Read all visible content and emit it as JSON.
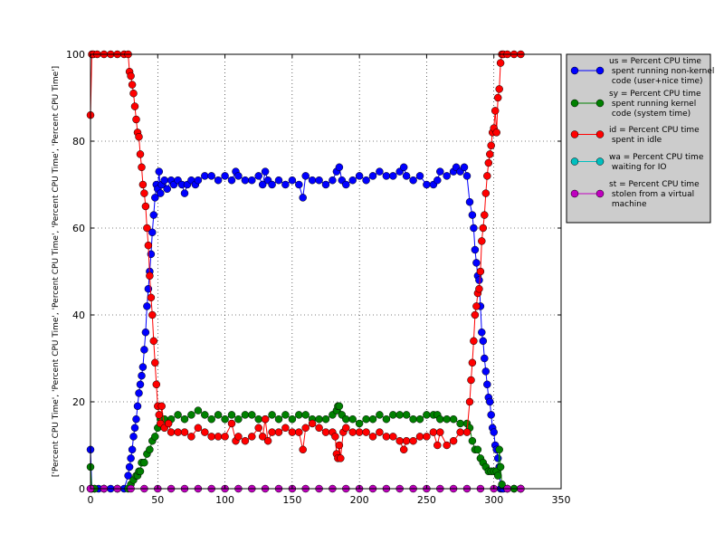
{
  "chart_data": {
    "type": "line",
    "title": "",
    "xlabel": "",
    "ylabel": "['Percent CPU Time', 'Percent CPU Time', 'Percent CPU Time', 'Percent CPU Time', 'Percent CPU Time']",
    "xlim": [
      0,
      350
    ],
    "ylim": [
      0,
      100
    ],
    "xticks": [
      0,
      50,
      100,
      150,
      200,
      250,
      300,
      350
    ],
    "yticks": [
      0,
      20,
      40,
      60,
      80,
      100
    ],
    "grid": true,
    "legend_position": "outside-right-top",
    "series": [
      {
        "name": "us = Percent CPU time spent running non-kernel code (user+nice time)",
        "legend_lines": [
          "us = Percent CPU time",
          " spent running non-kernel",
          " code (user+nice time)"
        ],
        "color": "#0000ff",
        "x": [
          0,
          1,
          3,
          6,
          10,
          15,
          20,
          25,
          28,
          29,
          30,
          31,
          32,
          33,
          34,
          35,
          36,
          37,
          38,
          39,
          40,
          41,
          42,
          43,
          44,
          45,
          46,
          47,
          48,
          49,
          50,
          51,
          52,
          53,
          55,
          57,
          60,
          62,
          65,
          68,
          70,
          72,
          75,
          78,
          80,
          85,
          90,
          95,
          100,
          105,
          108,
          110,
          115,
          120,
          125,
          128,
          130,
          132,
          135,
          140,
          145,
          150,
          155,
          158,
          160,
          165,
          170,
          175,
          180,
          183,
          185,
          187,
          190,
          195,
          200,
          205,
          210,
          215,
          220,
          225,
          230,
          233,
          235,
          240,
          245,
          250,
          255,
          258,
          260,
          265,
          270,
          272,
          275,
          278,
          280,
          282,
          284,
          285,
          286,
          287,
          288,
          289,
          290,
          291,
          292,
          293,
          294,
          295,
          296,
          297,
          298,
          299,
          300,
          301,
          302,
          303,
          304,
          305,
          306,
          307,
          310,
          315,
          320
        ],
        "y": [
          9,
          0,
          0,
          0,
          0,
          0,
          0,
          0,
          3,
          5,
          7,
          9,
          12,
          14,
          16,
          19,
          22,
          24,
          26,
          28,
          32,
          36,
          42,
          46,
          50,
          54,
          59,
          63,
          67,
          70,
          69,
          73,
          68,
          70,
          71,
          69,
          71,
          70,
          71,
          70,
          68,
          70,
          71,
          70,
          71,
          72,
          72,
          71,
          72,
          71,
          73,
          72,
          71,
          71,
          72,
          70,
          73,
          71,
          70,
          71,
          70,
          71,
          70,
          67,
          72,
          71,
          71,
          70,
          71,
          73,
          74,
          71,
          70,
          71,
          72,
          71,
          72,
          73,
          72,
          72,
          73,
          74,
          72,
          71,
          72,
          70,
          70,
          71,
          73,
          72,
          73,
          74,
          73,
          74,
          72,
          66,
          63,
          60,
          55,
          52,
          49,
          48,
          42,
          36,
          34,
          30,
          27,
          24,
          21,
          20,
          17,
          14,
          13,
          10,
          9,
          7,
          5,
          0,
          0,
          0,
          0,
          0,
          0
        ]
      },
      {
        "name": "sy = Percent CPU time spent running kernel code (system time)",
        "legend_lines": [
          "sy = Percent CPU time",
          " spent running kernel",
          " code (system time)"
        ],
        "color": "#008000",
        "x": [
          0,
          1,
          3,
          10,
          20,
          28,
          30,
          32,
          34,
          35,
          36,
          37,
          38,
          40,
          42,
          44,
          46,
          48,
          50,
          52,
          55,
          60,
          65,
          70,
          75,
          80,
          85,
          90,
          95,
          100,
          105,
          110,
          115,
          120,
          125,
          130,
          135,
          140,
          145,
          150,
          155,
          160,
          165,
          170,
          175,
          180,
          183,
          184,
          185,
          187,
          190,
          195,
          200,
          205,
          210,
          215,
          220,
          225,
          230,
          235,
          240,
          245,
          250,
          255,
          258,
          260,
          265,
          270,
          275,
          280,
          282,
          284,
          286,
          288,
          290,
          292,
          294,
          296,
          298,
          300,
          302,
          303,
          304,
          305,
          306,
          310,
          315,
          320
        ],
        "y": [
          5,
          0,
          0,
          0,
          0,
          0,
          1,
          2,
          3,
          3,
          4,
          4,
          6,
          6,
          8,
          9,
          11,
          12,
          14,
          16,
          16,
          16,
          17,
          16,
          17,
          18,
          17,
          16,
          17,
          16,
          17,
          16,
          17,
          17,
          16,
          16,
          17,
          16,
          17,
          16,
          17,
          17,
          16,
          16,
          16,
          17,
          18,
          19,
          19,
          17,
          16,
          16,
          15,
          16,
          16,
          17,
          16,
          17,
          17,
          17,
          16,
          16,
          17,
          17,
          17,
          16,
          16,
          16,
          15,
          15,
          14,
          11,
          9,
          9,
          7,
          6,
          5,
          4,
          4,
          4,
          4,
          3,
          9,
          5,
          1,
          0,
          0,
          0
        ]
      },
      {
        "name": "id = Percent CPU time spent in idle",
        "legend_lines": [
          "id = Percent CPU time",
          " spent in idle"
        ],
        "color": "#ff0000",
        "x": [
          0,
          1,
          2,
          5,
          10,
          15,
          20,
          25,
          28,
          29,
          30,
          31,
          32,
          33,
          34,
          35,
          36,
          37,
          38,
          39,
          40,
          41,
          42,
          43,
          44,
          45,
          46,
          47,
          48,
          49,
          50,
          51,
          52,
          53,
          55,
          58,
          60,
          65,
          70,
          75,
          80,
          85,
          90,
          95,
          100,
          105,
          108,
          110,
          115,
          120,
          125,
          128,
          130,
          132,
          135,
          140,
          145,
          150,
          155,
          158,
          160,
          165,
          170,
          175,
          180,
          182,
          183,
          184,
          185,
          186,
          188,
          190,
          195,
          200,
          205,
          210,
          215,
          220,
          225,
          230,
          233,
          235,
          240,
          245,
          250,
          255,
          258,
          260,
          265,
          270,
          275,
          280,
          282,
          283,
          284,
          285,
          286,
          287,
          288,
          289,
          290,
          291,
          292,
          293,
          294,
          295,
          296,
          297,
          298,
          299,
          300,
          301,
          302,
          303,
          304,
          305,
          306,
          307,
          310,
          315,
          320
        ],
        "y": [
          86,
          100,
          100,
          100,
          100,
          100,
          100,
          100,
          100,
          96,
          95,
          93,
          91,
          88,
          85,
          82,
          81,
          77,
          74,
          70,
          68,
          65,
          60,
          56,
          49,
          44,
          40,
          34,
          29,
          24,
          19,
          17,
          15,
          19,
          14,
          15,
          13,
          13,
          13,
          12,
          14,
          13,
          12,
          12,
          12,
          15,
          11,
          12,
          11,
          12,
          14,
          12,
          16,
          11,
          13,
          13,
          14,
          13,
          13,
          9,
          14,
          15,
          14,
          13,
          13,
          12,
          8,
          7,
          10,
          7,
          13,
          14,
          13,
          13,
          13,
          12,
          13,
          12,
          12,
          11,
          9,
          11,
          11,
          12,
          12,
          13,
          10,
          13,
          10,
          11,
          13,
          13,
          20,
          25,
          29,
          34,
          40,
          42,
          45,
          46,
          50,
          57,
          60,
          63,
          68,
          72,
          75,
          77,
          79,
          82,
          83,
          87,
          82,
          90,
          92,
          98,
          100,
          100,
          100,
          100,
          100
        ]
      },
      {
        "name": "wa = Percent CPU time waiting for IO",
        "legend_lines": [
          "wa = Percent CPU time",
          " waiting for IO"
        ],
        "color": "#00bfbf",
        "x": [
          0,
          320
        ],
        "y": [
          0,
          0
        ]
      },
      {
        "name": "st = Percent CPU time stolen from a virtual machine",
        "legend_lines": [
          "st = Percent CPU time",
          " stolen from a virtual",
          " machine"
        ],
        "color": "#bf00bf",
        "x": [
          0,
          10,
          20,
          30,
          40,
          50,
          60,
          70,
          80,
          90,
          100,
          110,
          120,
          130,
          140,
          150,
          160,
          170,
          180,
          190,
          200,
          210,
          220,
          230,
          240,
          250,
          260,
          270,
          280,
          290,
          300,
          310,
          320
        ],
        "y": [
          0,
          0,
          0,
          0,
          0,
          0,
          0,
          0,
          0,
          0,
          0,
          0,
          0,
          0,
          0,
          0,
          0,
          0,
          0,
          0,
          0,
          0,
          0,
          0,
          0,
          0,
          0,
          0,
          0,
          0,
          0,
          0,
          0
        ]
      }
    ]
  }
}
